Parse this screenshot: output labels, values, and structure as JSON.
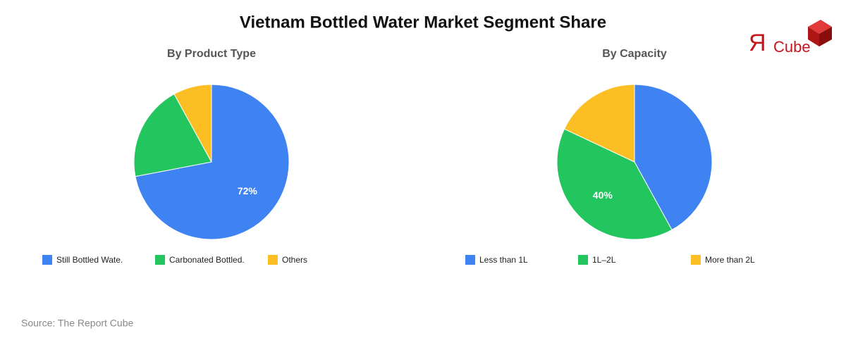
{
  "title": "Vietnam Bottled Water Market Segment Share",
  "logo": {
    "mark": "Я",
    "text": "Cube"
  },
  "source": "Source: The Report Cube",
  "chart_data": [
    {
      "type": "pie",
      "title": "By Product Type",
      "categories": [
        "Still Bottled Wate.",
        "Carbonated Bottled.",
        "Others"
      ],
      "values": [
        72,
        20,
        8
      ],
      "value_labels": [
        "72%",
        null,
        null
      ],
      "colors": [
        "#3f83f2",
        "#22c55e",
        "#fbbf24"
      ]
    },
    {
      "type": "pie",
      "title": "By Capacity",
      "categories": [
        "Less than 1L",
        "1L–2L",
        "More than 2L"
      ],
      "values": [
        42,
        40,
        18
      ],
      "value_labels": [
        null,
        "40%",
        null
      ],
      "colors": [
        "#3f83f2",
        "#22c55e",
        "#fbbf24"
      ]
    }
  ]
}
